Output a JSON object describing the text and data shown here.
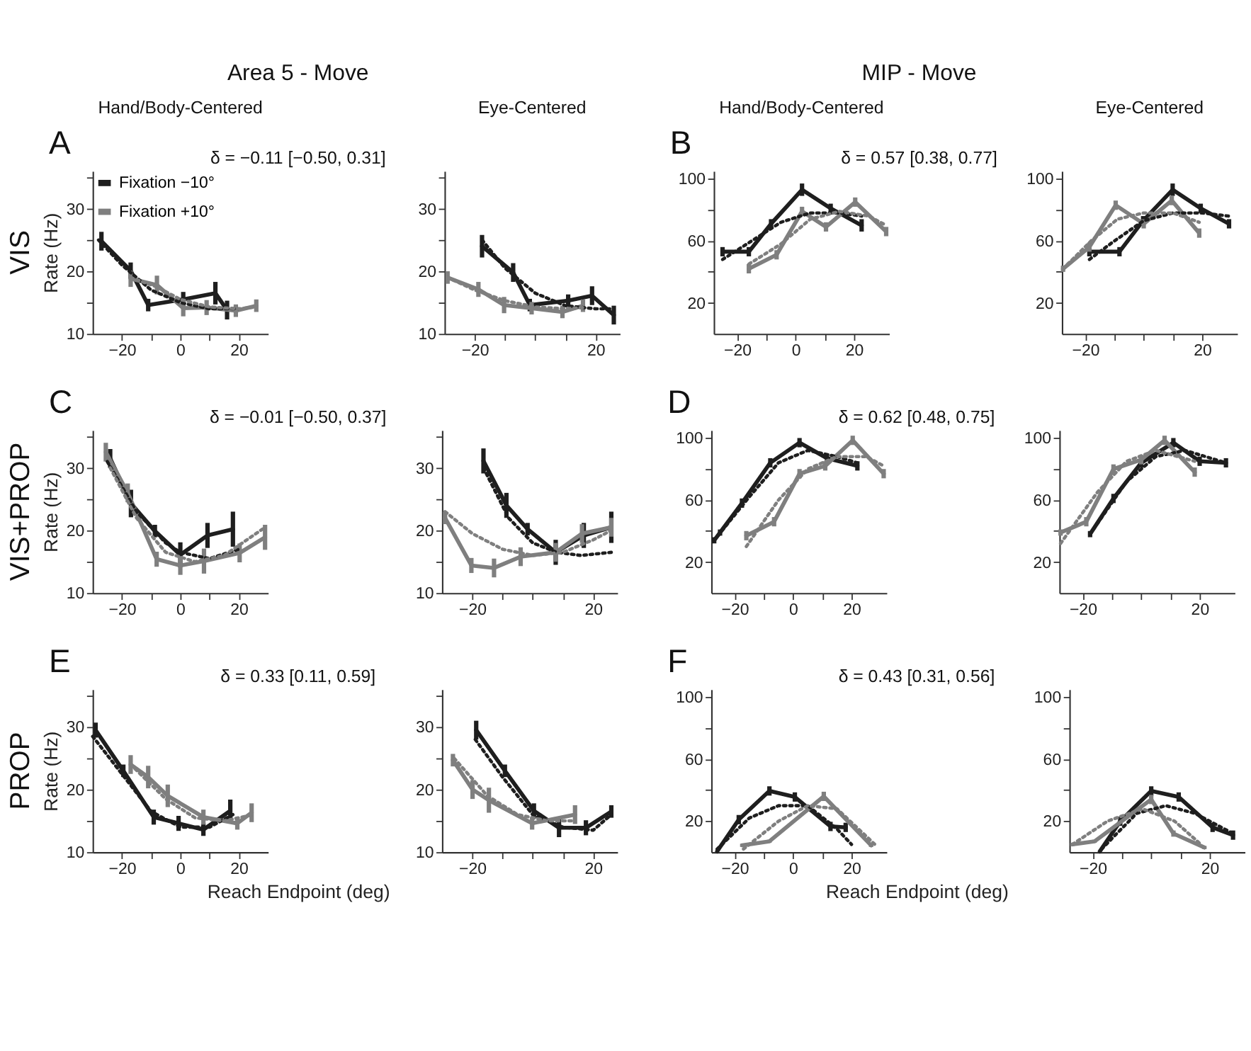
{
  "chart_data": [
    {
      "type": "line",
      "title": "Hand/Body-Centered",
      "ylabel": "Rate (Hz)",
      "annotations": [
        "A",
        "δ = −0.11  [−0.50,  0.31]",
        "VIS",
        "Area 5 - Move"
      ],
      "legend": "top left",
      "xlim": [
        -30,
        30
      ],
      "ylim": [
        10,
        36
      ],
      "xticks": [
        {
          "value": -20,
          "label": "−20"
        },
        {
          "value": -10,
          "label": null
        },
        0,
        {
          "value": 10,
          "label": null
        },
        20
      ],
      "yticks": [
        10,
        {
          "value": 15,
          "label": null
        },
        20,
        {
          "value": 25,
          "label": null
        },
        30,
        {
          "value": 35,
          "label": null
        }
      ],
      "series": [
        {
          "name": "Fixation −10°",
          "color": "#1e1e1e",
          "x": [
            -27,
            -17,
            -11,
            1,
            12,
            16
          ],
          "values": [
            24.8,
            20.1,
            14.6,
            15.5,
            16.5,
            13.8
          ],
          "errors": [
            1.5,
            1.3,
            1,
            1.2,
            1.8,
            1.5
          ]
        },
        {
          "name": "Fixation +10°",
          "color": "#7f7f7f",
          "x": [
            -17,
            -8,
            1,
            9,
            19,
            26
          ],
          "values": [
            18.8,
            17.8,
            14.1,
            14.2,
            13.7,
            14.5
          ],
          "errors": [
            1.3,
            1.5,
            1.3,
            1.2,
            1,
            1
          ]
        },
        {
          "color": "#1e1e1e",
          "line_style": "dotted",
          "x": [
            -28,
            -20,
            -10,
            0,
            10,
            20
          ],
          "values": [
            25,
            21,
            17,
            15,
            14,
            14
          ]
        },
        {
          "color": "#7f7f7f",
          "line_style": "dotted",
          "x": [
            -17,
            -8,
            0,
            10,
            20,
            26
          ],
          "values": [
            19,
            17.5,
            15.5,
            14.3,
            14,
            14.3
          ]
        }
      ]
    },
    {
      "type": "line",
      "title": "Eye-Centered",
      "xlim": [
        -30,
        28
      ],
      "ylim": [
        10,
        36
      ],
      "xticks": [
        {
          "value": -20,
          "label": "−20"
        },
        {
          "value": -10,
          "label": null
        },
        {
          "value": 0,
          "label": null
        },
        {
          "value": 10,
          "label": null
        },
        20
      ],
      "yticks": [
        10,
        {
          "value": 15,
          "label": null
        },
        20,
        {
          "value": 25,
          "label": null
        },
        30,
        {
          "value": 35,
          "label": null
        }
      ],
      "series": [
        {
          "color": "#1e1e1e",
          "x": [
            -17.6,
            -7.3,
            -1.8,
            10.9,
            18.8,
            26
          ],
          "values": [
            24,
            19.8,
            14.6,
            15.3,
            16.1,
            13
          ],
          "errors": [
            1.8,
            1.5,
            1,
            1,
            1.5,
            1.5
          ]
        },
        {
          "color": "#7f7f7f",
          "x": [
            -29,
            -18.8,
            -10.3,
            -1.2,
            9,
            15.8
          ],
          "values": [
            19,
            17.1,
            14.6,
            14.1,
            13.5,
            14.5
          ],
          "errors": [
            1,
            1.2,
            1.3,
            1,
            1,
            1
          ]
        },
        {
          "color": "#1e1e1e",
          "line_style": "dotted",
          "x": [
            -17.6,
            -10,
            0,
            10,
            20,
            26
          ],
          "values": [
            25,
            20.5,
            16.5,
            14.5,
            14,
            14
          ]
        },
        {
          "color": "#7f7f7f",
          "line_style": "dotted",
          "x": [
            -29,
            -20,
            -10,
            0,
            10,
            16
          ],
          "values": [
            19,
            17,
            15.3,
            14.3,
            14,
            14.2
          ]
        }
      ]
    },
    {
      "type": "line",
      "title": "Hand/Body-Centered",
      "annotations": [
        "B",
        "δ = 0.57  [0.38, 0.77]",
        "MIP - Move"
      ],
      "xlim": [
        -28,
        32
      ],
      "ylim": [
        0,
        105
      ],
      "xticks": [
        {
          "value": -20,
          "label": "−20"
        },
        {
          "value": -10,
          "label": null
        },
        0,
        {
          "value": 10,
          "label": null
        },
        20
      ],
      "yticks": [
        20,
        {
          "value": 40,
          "label": null
        },
        60,
        {
          "value": 80,
          "label": null
        },
        100
      ],
      "series": [
        {
          "color": "#1e1e1e",
          "x": [
            -25,
            -16,
            -8.4,
            2.2,
            12,
            22.6
          ],
          "values": [
            53,
            53,
            71,
            93,
            81,
            70
          ],
          "errors": [
            3,
            3,
            3,
            4,
            3,
            4
          ]
        },
        {
          "color": "#7f7f7f",
          "x": [
            -16,
            -6.5,
            2.2,
            10.4,
            20.4,
            31
          ],
          "values": [
            42,
            51,
            79,
            69,
            85,
            66
          ],
          "errors": [
            3,
            3,
            3,
            3,
            3,
            3
          ]
        },
        {
          "color": "#1e1e1e",
          "line_style": "dotted",
          "x": [
            -25,
            -15,
            -5,
            5,
            15,
            22.6
          ],
          "values": [
            48,
            60,
            72,
            78,
            78,
            76
          ]
        },
        {
          "color": "#7f7f7f",
          "line_style": "dotted",
          "x": [
            -16,
            -5,
            5,
            15,
            25,
            31
          ],
          "values": [
            45,
            58,
            74,
            79,
            76,
            70
          ]
        }
      ]
    },
    {
      "type": "line",
      "title": "Eye-Centered",
      "xlim": [
        -28,
        32
      ],
      "ylim": [
        0,
        105
      ],
      "xticks": [
        {
          "value": -20,
          "label": "−20"
        },
        {
          "value": -10,
          "label": null
        },
        {
          "value": 0,
          "label": null
        },
        {
          "value": 10,
          "label": null
        },
        20
      ],
      "yticks": [
        20,
        {
          "value": 40,
          "label": null
        },
        60,
        {
          "value": 80,
          "label": null
        },
        100
      ],
      "series": [
        {
          "color": "#1e1e1e",
          "x": [
            -18.6,
            -8.3,
            -0.2,
            9.9,
            19.5,
            29.2
          ],
          "values": [
            53,
            53,
            73,
            93,
            81,
            71
          ],
          "errors": [
            3,
            3,
            3,
            4,
            3,
            3
          ]
        },
        {
          "color": "#7f7f7f",
          "x": [
            -27.6,
            -18.6,
            -9.6,
            0,
            9.6,
            19
          ],
          "values": [
            42,
            56,
            83,
            71,
            86,
            65
          ],
          "errors": [
            2,
            3,
            3,
            3,
            3,
            3
          ]
        },
        {
          "color": "#1e1e1e",
          "line_style": "dotted",
          "x": [
            -18.6,
            -10,
            0,
            10,
            20,
            29
          ],
          "values": [
            48,
            60,
            73,
            78,
            78,
            76
          ]
        },
        {
          "color": "#7f7f7f",
          "line_style": "dotted",
          "x": [
            -27.6,
            -18,
            -9,
            0,
            10,
            19
          ],
          "values": [
            42,
            60,
            74,
            78,
            78,
            72
          ]
        }
      ]
    },
    {
      "type": "line",
      "ylabel": "Rate (Hz)",
      "annotations": [
        "C",
        "δ = −0.01  [−0.50, 0.37]",
        "VIS+PROP"
      ],
      "xlim": [
        -30,
        30
      ],
      "ylim": [
        10,
        36
      ],
      "xticks": [
        {
          "value": -20,
          "label": "−20"
        },
        {
          "value": -10,
          "label": null
        },
        0,
        {
          "value": 10,
          "label": null
        },
        20
      ],
      "yticks": [
        10,
        {
          "value": 15,
          "label": null
        },
        20,
        {
          "value": 25,
          "label": null
        },
        30,
        {
          "value": 35,
          "label": null
        }
      ],
      "series": [
        {
          "color": "#1e1e1e",
          "x": [
            -24,
            -16.9,
            -8.7,
            0,
            9.3,
            18
          ],
          "values": [
            31.5,
            24.3,
            19.9,
            16.1,
            19.2,
            20.2
          ],
          "errors": [
            1.5,
            2.2,
            1,
            2,
            2,
            2.8
          ]
        },
        {
          "color": "#7f7f7f",
          "x": [
            -25.5,
            -18,
            -8.1,
            0,
            8.1,
            20.3,
            29
          ],
          "values": [
            32.5,
            26,
            15.4,
            14.4,
            15.1,
            16.4,
            18.9
          ],
          "errors": [
            1.5,
            1.5,
            1.2,
            1.5,
            2,
            1.5,
            2
          ]
        },
        {
          "color": "#1e1e1e",
          "line_style": "dotted",
          "x": [
            -25,
            -15,
            -5,
            0,
            10,
            20
          ],
          "values": [
            31,
            23,
            18,
            16.5,
            15.5,
            17
          ]
        },
        {
          "color": "#7f7f7f",
          "line_style": "dotted",
          "x": [
            -24,
            -15,
            -5,
            5,
            15,
            29
          ],
          "values": [
            30,
            22,
            16.5,
            15,
            16,
            20.5
          ]
        }
      ]
    },
    {
      "type": "line",
      "xlim": [
        -30,
        28
      ],
      "ylim": [
        10,
        36
      ],
      "xticks": [
        {
          "value": -20,
          "label": "−20"
        },
        {
          "value": -10,
          "label": null
        },
        {
          "value": 0,
          "label": null
        },
        {
          "value": 10,
          "label": null
        },
        20
      ],
      "yticks": [
        10,
        {
          "value": 15,
          "label": null
        },
        20,
        {
          "value": 25,
          "label": null
        },
        30,
        {
          "value": 35,
          "label": null
        }
      ],
      "series": [
        {
          "color": "#1e1e1e",
          "x": [
            -16.3,
            -8.7,
            -1.7,
            7.6,
            16.9,
            26
          ],
          "values": [
            31.1,
            24,
            20.2,
            16.5,
            19.2,
            20.5
          ],
          "errors": [
            2,
            2,
            1,
            2,
            2,
            2.5
          ]
        },
        {
          "color": "#7f7f7f",
          "x": [
            -29,
            -20.3,
            -12.8,
            -4,
            7.6,
            16.3,
            26
          ],
          "values": [
            22,
            14.4,
            14,
            15.8,
            16.5,
            19.5,
            20.5
          ],
          "errors": [
            1,
            1.2,
            1.5,
            1.5,
            1.5,
            1.5,
            1.5
          ]
        },
        {
          "color": "#1e1e1e",
          "line_style": "dotted",
          "x": [
            -16.3,
            -8,
            0,
            8,
            16,
            26
          ],
          "values": [
            30,
            22,
            18,
            16.5,
            16,
            16.5
          ]
        },
        {
          "color": "#7f7f7f",
          "line_style": "dotted",
          "x": [
            -29,
            -20,
            -10,
            0,
            10,
            20,
            26
          ],
          "values": [
            23,
            19.5,
            17,
            16,
            16.5,
            18.5,
            20
          ]
        }
      ]
    },
    {
      "type": "line",
      "annotations": [
        "D",
        "δ = 0.62  [0.48, 0.75]"
      ],
      "xlim": [
        -28,
        32
      ],
      "ylim": [
        0,
        105
      ],
      "xticks": [
        {
          "value": -20,
          "label": "−20"
        },
        {
          "value": -10,
          "label": null
        },
        0,
        {
          "value": 10,
          "label": null
        },
        20
      ],
      "yticks": [
        20,
        {
          "value": 40,
          "label": null
        },
        60,
        {
          "value": 80,
          "label": null
        },
        100
      ],
      "series": [
        {
          "color": "#1e1e1e",
          "x": [
            -27,
            -25,
            -17.5,
            -7.8,
            2.2,
            11.6,
            22
          ],
          "values": [
            34,
            39,
            58,
            84,
            97,
            87,
            82
          ],
          "errors": [
            2,
            2,
            3,
            3,
            3,
            3,
            3
          ]
        },
        {
          "color": "#7f7f7f",
          "x": [
            -16,
            -6.5,
            2.2,
            11,
            20.4,
            31
          ],
          "values": [
            37,
            46,
            77,
            82,
            98.5,
            77
          ],
          "errors": [
            3,
            3,
            3,
            3,
            3,
            3
          ]
        },
        {
          "color": "#1e1e1e",
          "line_style": "dotted",
          "x": [
            -27,
            -15,
            -5,
            5,
            15,
            22
          ],
          "values": [
            34,
            62,
            84,
            92,
            88,
            84
          ]
        },
        {
          "color": "#7f7f7f",
          "line_style": "dotted",
          "x": [
            -16,
            -5,
            5,
            15,
            25,
            31
          ],
          "values": [
            30,
            60,
            80,
            88,
            88,
            82
          ]
        }
      ]
    },
    {
      "type": "line",
      "xlim": [
        -28,
        32
      ],
      "ylim": [
        0,
        105
      ],
      "xticks": [
        {
          "value": -20,
          "label": "−20"
        },
        {
          "value": -10,
          "label": null
        },
        {
          "value": 0,
          "label": null
        },
        {
          "value": 10,
          "label": null
        },
        20
      ],
      "yticks": [
        20,
        {
          "value": 40,
          "label": null
        },
        60,
        {
          "value": 80,
          "label": null
        },
        100
      ],
      "series": [
        {
          "color": "#1e1e1e",
          "x": [
            -17.5,
            -9.5,
            0,
            11,
            20,
            29
          ],
          "values": [
            38,
            61,
            84,
            97,
            85,
            84
          ],
          "errors": [
            2,
            3,
            3,
            3,
            3,
            3
          ]
        },
        {
          "color": "#7f7f7f",
          "x": [
            -27.6,
            -18.8,
            -9.5,
            0,
            8,
            18.3
          ],
          "values": [
            39,
            46,
            80,
            86,
            98.5,
            78
          ],
          "errors": [
            2,
            3,
            3,
            3,
            3,
            3
          ]
        },
        {
          "color": "#1e1e1e",
          "line_style": "dotted",
          "x": [
            -17.5,
            -5,
            5,
            15,
            29
          ],
          "values": [
            38,
            72,
            88,
            92,
            84
          ]
        },
        {
          "color": "#7f7f7f",
          "line_style": "dotted",
          "x": [
            -27.6,
            -15,
            -5,
            5,
            18.3
          ],
          "values": [
            32,
            65,
            85,
            92,
            85
          ]
        }
      ]
    },
    {
      "type": "line",
      "ylabel": "Rate (Hz)",
      "xlabel": "Reach Endpoint (deg)",
      "annotations": [
        "E",
        "δ = 0.33  [0.11, 0.59]",
        "PROP"
      ],
      "xlim": [
        -30,
        30
      ],
      "ylim": [
        10,
        36
      ],
      "xticks": [
        {
          "value": -20,
          "label": "−20"
        },
        {
          "value": -10,
          "label": null
        },
        0,
        {
          "value": 10,
          "label": null
        },
        20
      ],
      "yticks": [
        10,
        {
          "value": 15,
          "label": null
        },
        20,
        {
          "value": 25,
          "label": null
        },
        30,
        {
          "value": 35,
          "label": null
        }
      ],
      "series": [
        {
          "color": "#1e1e1e",
          "x": [
            -29,
            -19.5,
            -9.1,
            -0.6,
            7.9,
            17.1
          ],
          "values": [
            29.5,
            23,
            15.6,
            14.6,
            13.6,
            16.6
          ],
          "errors": [
            1.2,
            1,
            1.2,
            1.2,
            1,
            1.8
          ]
        },
        {
          "color": "#7f7f7f",
          "x": [
            -17,
            -11,
            -4.3,
            7.9,
            19.5,
            24.4
          ],
          "values": [
            24,
            22,
            19,
            15.6,
            14.6,
            16.3
          ],
          "errors": [
            1.5,
            1.8,
            1.8,
            1.2,
            1,
            1.5
          ]
        },
        {
          "color": "#1e1e1e",
          "line_style": "dotted",
          "x": [
            -30,
            -20,
            -10,
            0,
            10,
            18
          ],
          "values": [
            28.5,
            22.5,
            16.5,
            14,
            14,
            16
          ]
        },
        {
          "color": "#7f7f7f",
          "line_style": "dotted",
          "x": [
            -17,
            -5,
            5,
            15,
            25
          ],
          "values": [
            24,
            18.5,
            15.5,
            15,
            16
          ]
        }
      ]
    },
    {
      "type": "line",
      "xlim": [
        -30,
        28
      ],
      "ylim": [
        10,
        36
      ],
      "xticks": [
        {
          "value": -20,
          "label": "−20"
        },
        {
          "value": -10,
          "label": null
        },
        {
          "value": 0,
          "label": null
        },
        {
          "value": 10,
          "label": null
        },
        20
      ],
      "yticks": [
        10,
        {
          "value": 15,
          "label": null
        },
        20,
        {
          "value": 25,
          "label": null
        },
        30,
        {
          "value": 35,
          "label": null
        }
      ],
      "series": [
        {
          "color": "#1e1e1e",
          "x": [
            -18.7,
            -9.2,
            0.4,
            8.7,
            17.6,
            26
          ],
          "values": [
            29.5,
            23,
            16.6,
            13.9,
            13.9,
            16.5
          ],
          "errors": [
            1.5,
            1,
            1.2,
            1.5,
            1.2,
            1
          ]
        },
        {
          "color": "#7f7f7f",
          "x": [
            -26.4,
            -19.9,
            -14.5,
            -0.2,
            14
          ],
          "values": [
            24.7,
            20,
            18.3,
            14.6,
            16
          ],
          "errors": [
            1,
            1.5,
            2,
            1,
            1.5
          ]
        },
        {
          "color": "#1e1e1e",
          "line_style": "dotted",
          "x": [
            -19,
            -10,
            0,
            10,
            20,
            26
          ],
          "values": [
            28,
            22,
            16,
            14,
            13.5,
            16
          ]
        },
        {
          "color": "#7f7f7f",
          "line_style": "dotted",
          "x": [
            -26,
            -15,
            -5,
            5,
            14
          ],
          "values": [
            25,
            19,
            16,
            15,
            15
          ]
        }
      ]
    },
    {
      "type": "line",
      "xlabel": "Reach Endpoint (deg)",
      "annotations": [
        "F",
        "δ = 0.43  [0.31, 0.56]"
      ],
      "xlim": [
        -28,
        32
      ],
      "ylim": [
        0,
        105
      ],
      "xticks": [
        {
          "value": -20,
          "label": "−20"
        },
        {
          "value": -10,
          "label": null
        },
        0,
        {
          "value": 10,
          "label": null
        },
        20
      ],
      "yticks": [
        20,
        {
          "value": 40,
          "label": null
        },
        60,
        {
          "value": 80,
          "label": null
        },
        100
      ],
      "series": [
        {
          "color": "#1e1e1e",
          "x": [
            -26,
            -18.6,
            -8.1,
            0.6,
            12.8,
            18
          ],
          "values": [
            0.5,
            21,
            39.5,
            35.6,
            16.6,
            16
          ],
          "errors": [
            null,
            3,
            3,
            3,
            3,
            3
          ]
        },
        {
          "color": "#7f7f7f",
          "x": [
            -17.4,
            -8.1,
            10.5,
            26.7
          ],
          "values": [
            4.4,
            7,
            36,
            4.4
          ],
          "errors": [
            1,
            1,
            3,
            1
          ]
        },
        {
          "color": "#1e1e1e",
          "line_style": "dotted",
          "x": [
            -26,
            -15,
            -5,
            5,
            15,
            20
          ],
          "values": [
            2,
            22,
            30,
            30,
            15,
            5
          ]
        },
        {
          "color": "#7f7f7f",
          "line_style": "dotted",
          "x": [
            -17,
            -5,
            5,
            15,
            28
          ],
          "values": [
            2,
            20,
            30,
            28,
            5
          ]
        }
      ]
    },
    {
      "type": "line",
      "xlim": [
        -28,
        32
      ],
      "ylim": [
        0,
        105
      ],
      "xticks": [
        {
          "value": -20,
          "label": "−20"
        },
        {
          "value": -10,
          "label": null
        },
        {
          "value": 0,
          "label": null
        },
        {
          "value": 10,
          "label": null
        },
        20
      ],
      "yticks": [
        20,
        {
          "value": 40,
          "label": null
        },
        60,
        {
          "value": 80,
          "label": null
        },
        100
      ],
      "series": [
        {
          "color": "#1e1e1e",
          "x": [
            -17.6,
            -10.6,
            0,
            9.4,
            21,
            28
          ],
          "values": [
            0.5,
            20,
            39.5,
            35.6,
            16,
            11
          ],
          "errors": [
            null,
            3,
            3,
            3,
            3,
            3
          ]
        },
        {
          "color": "#7f7f7f",
          "x": [
            -27,
            -19.4,
            0,
            7.6,
            18.2
          ],
          "values": [
            5,
            7,
            34,
            12,
            3
          ],
          "errors": [
            1,
            1,
            3,
            2,
            1
          ]
        },
        {
          "color": "#1e1e1e",
          "line_style": "dotted",
          "x": [
            -17,
            -5,
            5,
            15,
            28
          ],
          "values": [
            2,
            25,
            30,
            25,
            12
          ]
        },
        {
          "color": "#7f7f7f",
          "line_style": "dotted",
          "x": [
            -27,
            -15,
            -3,
            8,
            17
          ],
          "values": [
            5,
            20,
            28,
            20,
            5
          ]
        }
      ]
    }
  ]
}
